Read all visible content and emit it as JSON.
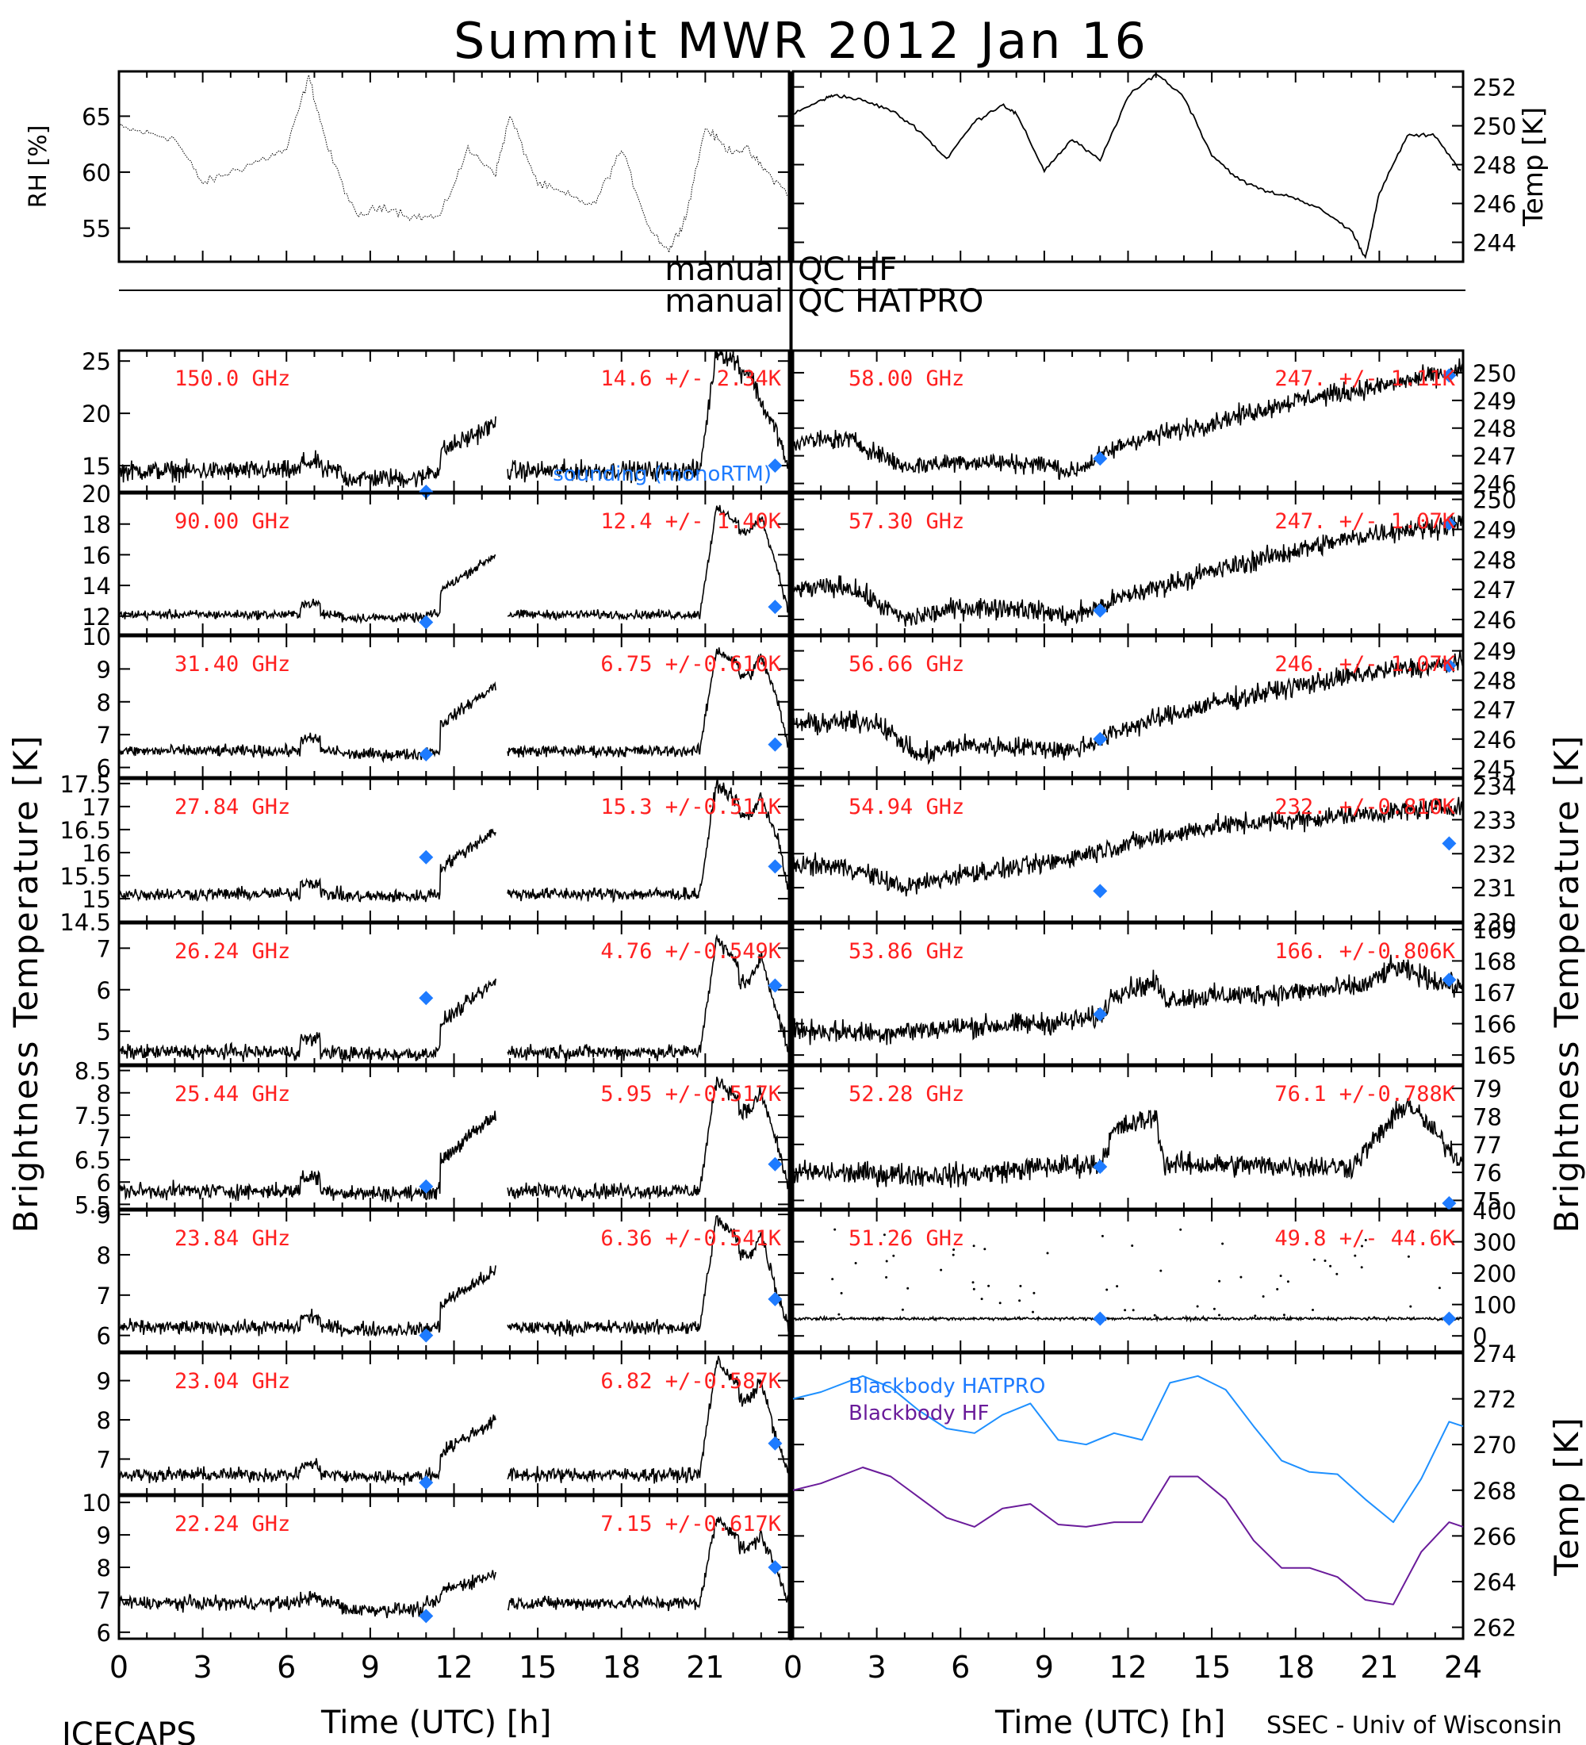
{
  "title": "Summit MWR 2012 Jan 16",
  "footer": {
    "left": "ICECAPS",
    "right": "SSEC - Univ of Wisconsin",
    "xlabel": "Time (UTC) [h]"
  },
  "qc": {
    "line1_left": "manual",
    "line1_right": "QC HF",
    "line2_left": "manual",
    "line2_right": "QC HATPRO"
  },
  "colors": {
    "text_red": "#ff2020",
    "sounding_blue": "#1e7bff",
    "blackbody_hatpro": "#1e90ff",
    "blackbody_hf": "#6a1b9a"
  },
  "chart_data": [
    {
      "type": "line",
      "panel": "rh",
      "ylabel": "RH [%]",
      "xlim": [
        0,
        24
      ],
      "ylim": [
        52,
        69
      ],
      "yticks": [
        55,
        60,
        65
      ],
      "x": [
        0,
        1,
        2,
        3,
        4,
        5,
        6,
        6.8,
        7.5,
        8.5,
        9.5,
        10.5,
        11.5,
        12.5,
        13.5,
        14,
        15,
        16,
        17,
        18,
        19,
        19.7,
        20.3,
        21,
        21.8,
        22.5,
        23.2,
        24
      ],
      "y": [
        64,
        63.5,
        63,
        59,
        60,
        61,
        62,
        68.5,
        62,
        56,
        57,
        56,
        56,
        62,
        60,
        65,
        59,
        58,
        57,
        62,
        55,
        53,
        56,
        64,
        62,
        62,
        60,
        58
      ]
    },
    {
      "type": "line",
      "panel": "temp",
      "ylabel": "Temp [K]",
      "xlim": [
        0,
        24
      ],
      "ylim": [
        243,
        252.8
      ],
      "yticks": [
        244,
        246,
        248,
        250,
        252
      ],
      "x": [
        0,
        1,
        1.5,
        2.5,
        3.5,
        4.5,
        5.5,
        6.5,
        7.5,
        8,
        9,
        10,
        11,
        12,
        13,
        14,
        15,
        16,
        17,
        18,
        19,
        20,
        20.5,
        21,
        22,
        23,
        24
      ],
      "y": [
        250.6,
        251.3,
        251.6,
        251.3,
        250.8,
        249.8,
        248.3,
        250.2,
        251.1,
        250.6,
        247.7,
        249.3,
        248.2,
        251.5,
        252.7,
        251.5,
        248.5,
        247.2,
        246.6,
        246.3,
        245.6,
        244.6,
        243.2,
        246.5,
        249.5,
        249.5,
        247.5
      ]
    },
    {
      "type": "scatter",
      "panel": "left-1",
      "label": "150.0 GHz",
      "stat": "14.6 +/-   2.34K",
      "ylim": [
        12.5,
        26
      ],
      "yticks": [
        15,
        20,
        25
      ],
      "base": 14.5,
      "noise": 0.8,
      "lowx": [
        8,
        11
      ],
      "lowamt": -0.7,
      "step": [
        11.5,
        13.5,
        19
      ],
      "peak": [
        22,
        26,
        24,
        21,
        18
      ],
      "sounding": [
        [
          11,
          12.5
        ],
        [
          23.5,
          15
        ]
      ],
      "legend_sounding": "sounding (monoRTM)"
    },
    {
      "type": "scatter",
      "panel": "left-2",
      "label": "90.00 GHz",
      "stat": "12.4 +/-   1.40K",
      "ylim": [
        10.8,
        20
      ],
      "yticks": [
        12,
        14,
        16,
        18,
        20
      ],
      "base": 12.1,
      "noise": 0.25,
      "lowx": [
        8,
        11
      ],
      "lowamt": -0.2,
      "step": [
        11.5,
        13.5,
        16
      ],
      "peak": [
        22,
        19,
        17.5,
        18.5,
        15
      ],
      "sounding": [
        [
          11,
          11.6
        ],
        [
          23.5,
          12.6
        ]
      ]
    },
    {
      "type": "scatter",
      "panel": "left-3",
      "label": "31.40 GHz",
      "stat": "6.75 +/-0.610K",
      "ylim": [
        5.7,
        10
      ],
      "yticks": [
        6,
        7,
        8,
        9,
        10
      ],
      "base": 6.5,
      "noise": 0.15,
      "lowx": [
        8,
        11
      ],
      "lowamt": -0.1,
      "step": [
        11.5,
        13.5,
        8.5
      ],
      "peak": [
        22,
        9.6,
        8.8,
        9.4,
        8.0
      ],
      "sounding": [
        [
          11,
          6.4
        ],
        [
          23.5,
          6.7
        ]
      ]
    },
    {
      "type": "scatter",
      "panel": "left-4",
      "label": "27.84 GHz",
      "stat": "15.3 +/-0.511K",
      "ylim": [
        14.5,
        17.6
      ],
      "yticks": [
        14.5,
        15.0,
        15.5,
        16.0,
        16.5,
        17.0,
        17.5
      ],
      "base": 15.1,
      "noise": 0.12,
      "lowx": [
        8,
        11
      ],
      "lowamt": -0.05,
      "step": [
        11.5,
        13.5,
        16.5
      ],
      "peak": [
        22,
        17.5,
        16.8,
        17.2,
        16.3
      ],
      "sounding": [
        [
          11,
          15.9
        ],
        [
          23.5,
          15.7
        ]
      ]
    },
    {
      "type": "scatter",
      "panel": "left-5",
      "label": "26.24 GHz",
      "stat": "4.76 +/-0.549K",
      "ylim": [
        4.2,
        7.6
      ],
      "yticks": [
        5,
        6,
        7
      ],
      "base": 4.5,
      "noise": 0.15,
      "lowx": [
        8,
        11
      ],
      "lowamt": -0.05,
      "step": [
        11.5,
        13.5,
        6.2
      ],
      "peak": [
        22,
        7.2,
        6.2,
        6.8,
        5.4
      ],
      "sounding": [
        [
          11,
          5.8
        ],
        [
          23.5,
          6.1
        ]
      ]
    },
    {
      "type": "scatter",
      "panel": "left-6",
      "label": "25.44 GHz",
      "stat": "5.95 +/-0.517K",
      "ylim": [
        5.4,
        8.6
      ],
      "yticks": [
        5.5,
        6.0,
        6.5,
        7.0,
        7.5,
        8.0,
        8.5
      ],
      "base": 5.8,
      "noise": 0.15,
      "lowx": [
        8,
        11
      ],
      "lowamt": -0.05,
      "step": [
        11.5,
        13.5,
        7.5
      ],
      "peak": [
        22,
        8.3,
        7.6,
        8.0,
        6.8
      ],
      "sounding": [
        [
          11,
          5.9
        ],
        [
          23.5,
          6.4
        ]
      ]
    },
    {
      "type": "scatter",
      "panel": "left-7",
      "label": "23.84 GHz",
      "stat": "6.36 +/-0.541K",
      "ylim": [
        5.6,
        9.1
      ],
      "yticks": [
        6,
        7,
        8,
        9
      ],
      "base": 6.2,
      "noise": 0.15,
      "lowx": [
        8,
        11
      ],
      "lowamt": -0.05,
      "step": [
        11.5,
        13.5,
        7.6
      ],
      "peak": [
        22,
        8.9,
        8.0,
        8.5,
        7.0
      ],
      "sounding": [
        [
          11,
          6.0
        ],
        [
          23.5,
          6.9
        ]
      ]
    },
    {
      "type": "scatter",
      "panel": "left-8",
      "label": "23.04 GHz",
      "stat": "6.82 +/-0.587K",
      "ylim": [
        6.1,
        9.7
      ],
      "yticks": [
        6,
        7,
        8,
        9
      ],
      "base": 6.6,
      "noise": 0.15,
      "lowx": [
        8,
        11
      ],
      "lowamt": -0.05,
      "step": [
        11.5,
        13.5,
        8.0
      ],
      "peak": [
        22,
        9.5,
        8.5,
        9.0,
        7.4
      ],
      "sounding": [
        [
          11,
          6.4
        ],
        [
          23.5,
          7.4
        ]
      ]
    },
    {
      "type": "scatter",
      "panel": "left-9",
      "label": "22.24 GHz",
      "stat": "7.15 +/-0.617K",
      "ylim": [
        5.8,
        10.2
      ],
      "yticks": [
        6,
        7,
        8,
        9,
        10
      ],
      "base": 6.9,
      "noise": 0.18,
      "lowx": [
        8,
        11
      ],
      "lowamt": -0.2,
      "step": [
        11.5,
        13.5,
        7.8
      ],
      "peak": [
        22,
        9.5,
        8.6,
        9.0,
        7.8
      ],
      "sounding": [
        [
          11,
          6.5
        ],
        [
          23.5,
          8.0
        ]
      ]
    },
    {
      "type": "scatter",
      "panel": "right-1",
      "label": "58.00 GHz",
      "stat": "247. +/- 1.11K",
      "ylim": [
        245.7,
        250.8
      ],
      "yticks": [
        246,
        247,
        248,
        249,
        250
      ],
      "trend": [
        [
          0,
          247.5
        ],
        [
          2,
          247.6
        ],
        [
          4,
          246.6
        ],
        [
          6,
          246.8
        ],
        [
          9,
          246.7
        ],
        [
          10,
          246.4
        ],
        [
          12,
          247.5
        ],
        [
          15,
          248.2
        ],
        [
          18,
          249.0
        ],
        [
          21,
          249.5
        ],
        [
          24,
          250.1
        ]
      ],
      "noise": 0.3,
      "sounding": [
        [
          11,
          246.9
        ],
        [
          23.5,
          249.9
        ]
      ]
    },
    {
      "type": "scatter",
      "panel": "right-2",
      "label": "57.30 GHz",
      "stat": "247. +/- 1.07K",
      "ylim": [
        245.5,
        250.2
      ],
      "yticks": [
        246,
        247,
        248,
        249,
        250
      ],
      "trend": [
        [
          0,
          247.0
        ],
        [
          2,
          247.1
        ],
        [
          4,
          246.0
        ],
        [
          6,
          246.4
        ],
        [
          8,
          246.4
        ],
        [
          10,
          246.1
        ],
        [
          12,
          246.8
        ],
        [
          15,
          247.6
        ],
        [
          18,
          248.3
        ],
        [
          21,
          248.9
        ],
        [
          24,
          249.2
        ]
      ],
      "noise": 0.3,
      "sounding": [
        [
          11,
          246.3
        ],
        [
          23.5,
          249.2
        ]
      ]
    },
    {
      "type": "scatter",
      "panel": "right-3",
      "label": "56.66 GHz",
      "stat": "246. +/- 1.07K",
      "ylim": [
        244.7,
        249.5
      ],
      "yticks": [
        245,
        246,
        247,
        248,
        249
      ],
      "trend": [
        [
          0,
          246.5
        ],
        [
          3,
          246.6
        ],
        [
          4.5,
          245.4
        ],
        [
          6,
          245.8
        ],
        [
          9,
          245.7
        ],
        [
          10,
          245.6
        ],
        [
          12,
          246.4
        ],
        [
          15,
          247.2
        ],
        [
          18,
          247.8
        ],
        [
          21,
          248.3
        ],
        [
          24,
          248.6
        ]
      ],
      "noise": 0.3,
      "sounding": [
        [
          11,
          246.0
        ],
        [
          23.5,
          248.5
        ]
      ]
    },
    {
      "type": "scatter",
      "panel": "right-4",
      "label": "54.94 GHz",
      "stat": "232. +/-0.810K",
      "ylim": [
        230.0,
        234.2
      ],
      "yticks": [
        230,
        231,
        232,
        233,
        234
      ],
      "trend": [
        [
          0,
          231.7
        ],
        [
          2,
          231.6
        ],
        [
          4,
          231.0
        ],
        [
          6,
          231.4
        ],
        [
          9,
          231.7
        ],
        [
          12,
          232.3
        ],
        [
          15,
          232.8
        ],
        [
          18,
          233.0
        ],
        [
          21,
          233.2
        ],
        [
          24,
          233.4
        ]
      ],
      "noise": 0.25,
      "sounding": [
        [
          11,
          230.9
        ],
        [
          23.5,
          232.3
        ]
      ]
    },
    {
      "type": "scatter",
      "panel": "right-5",
      "label": "53.86 GHz",
      "stat": "166. +/-0.806K",
      "ylim": [
        164.7,
        169.2
      ],
      "yticks": [
        165,
        166,
        167,
        168,
        169
      ],
      "trend": [
        [
          0,
          165.8
        ],
        [
          3,
          165.7
        ],
        [
          6,
          165.9
        ],
        [
          9,
          166.0
        ],
        [
          11,
          166.2
        ],
        [
          11.5,
          167.0
        ],
        [
          13,
          167.3
        ],
        [
          13.3,
          166.8
        ],
        [
          18,
          167.0
        ],
        [
          20.5,
          167.2
        ],
        [
          21.5,
          167.8
        ],
        [
          24,
          167.1
        ]
      ],
      "noise": 0.3,
      "sounding": [
        [
          11,
          166.3
        ],
        [
          23.5,
          167.4
        ]
      ]
    },
    {
      "type": "scatter",
      "panel": "right-6",
      "label": "52.28 GHz",
      "stat": "76.1 +/-0.788K",
      "ylim": [
        74.7,
        79.8
      ],
      "yticks": [
        75,
        76,
        77,
        78,
        79
      ],
      "trend": [
        [
          0,
          76.0
        ],
        [
          6,
          75.9
        ],
        [
          9,
          76.2
        ],
        [
          11,
          76.3
        ],
        [
          11.5,
          77.5
        ],
        [
          13,
          78.0
        ],
        [
          13.3,
          76.3
        ],
        [
          20,
          76.2
        ],
        [
          22,
          78.5
        ],
        [
          24,
          76.3
        ]
      ],
      "noise": 0.35,
      "sounding": [
        [
          11,
          76.2
        ],
        [
          23.5,
          74.9
        ]
      ]
    },
    {
      "type": "scatter",
      "panel": "right-7",
      "label": "51.26 GHz",
      "stat": "49.8 +/-  44.6K",
      "ylim": [
        -50,
        400
      ],
      "yticks": [
        0,
        100,
        200,
        300,
        400
      ],
      "trend": [
        [
          0,
          55
        ],
        [
          24,
          55
        ]
      ],
      "noise": 4,
      "spikes": true,
      "sounding": [
        [
          11,
          55
        ],
        [
          23.5,
          55
        ]
      ]
    },
    {
      "type": "line",
      "panel": "blackbody",
      "ylabel": "Temp [K]",
      "ylim": [
        261.5,
        274
      ],
      "yticks": [
        262,
        264,
        266,
        268,
        270,
        272,
        274
      ],
      "series": [
        {
          "name": "Blackbody HATPRO",
          "x": [
            0,
            1,
            2.5,
            3.5,
            4.5,
            5.5,
            6.5,
            7.5,
            8.5,
            9.5,
            10.5,
            11.5,
            12.5,
            13.5,
            14.5,
            15.5,
            16.5,
            17.5,
            18.5,
            19.5,
            20.5,
            21.5,
            22.5,
            23.5,
            24
          ],
          "y": [
            272.0,
            272.3,
            273.0,
            272.5,
            271.5,
            270.7,
            270.5,
            271.3,
            271.8,
            270.2,
            270.0,
            270.5,
            270.2,
            272.7,
            273.0,
            272.4,
            270.8,
            269.3,
            268.8,
            268.7,
            267.6,
            266.6,
            268.5,
            271.0,
            270.8
          ]
        },
        {
          "name": "Blackbody HF",
          "x": [
            0,
            1,
            2.5,
            3.5,
            4.5,
            5.5,
            6.5,
            7.5,
            8.5,
            9.5,
            10.5,
            11.5,
            12.5,
            13.5,
            14.5,
            15.5,
            16.5,
            17.5,
            18.5,
            19.5,
            20.5,
            21.5,
            22.5,
            23.5,
            24
          ],
          "y": [
            268.0,
            268.3,
            269.0,
            268.6,
            267.7,
            266.8,
            266.4,
            267.2,
            267.4,
            266.5,
            266.4,
            266.6,
            266.6,
            268.6,
            268.6,
            267.6,
            265.8,
            264.6,
            264.6,
            264.2,
            263.2,
            263.0,
            265.3,
            266.6,
            266.4
          ]
        }
      ]
    }
  ]
}
